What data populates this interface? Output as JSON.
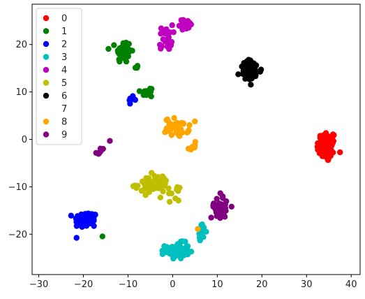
{
  "chart_data": {
    "type": "scatter",
    "title": "",
    "xlabel": "",
    "ylabel": "",
    "xlim": [
      -31.5,
      42
    ],
    "ylim": [
      -28.5,
      28.5
    ],
    "xticks": [
      -30,
      -20,
      -10,
      0,
      10,
      20,
      30,
      40
    ],
    "yticks": [
      -20,
      -10,
      0,
      10,
      20
    ],
    "xtick_labels": [
      "−30",
      "−20",
      "−10",
      "0",
      "10",
      "20",
      "30",
      "40"
    ],
    "ytick_labels": [
      "−20",
      "−10",
      "0",
      "10",
      "20"
    ],
    "grid": false,
    "legend": "upper-left",
    "series": [
      {
        "name": "0",
        "color": "#ff0000",
        "clusters": [
          {
            "cx": 34.5,
            "cy": -1.5,
            "sx": 1.8,
            "sy": 2.8,
            "n": 80
          }
        ]
      },
      {
        "name": "1",
        "color": "#008000",
        "clusters": [
          {
            "cx": -11.0,
            "cy": 18.5,
            "sx": 1.4,
            "sy": 2.0,
            "n": 55
          },
          {
            "cx": -8.0,
            "cy": 15.0,
            "sx": 0.6,
            "sy": 0.8,
            "n": 4
          },
          {
            "cx": -5.5,
            "cy": 10.0,
            "sx": 1.5,
            "sy": 0.9,
            "n": 10
          },
          {
            "cx": -15.8,
            "cy": -20.3,
            "sx": 0.2,
            "sy": 0.2,
            "n": 1
          }
        ]
      },
      {
        "name": "2",
        "color": "#0000ff",
        "clusters": [
          {
            "cx": -19.5,
            "cy": -17.0,
            "sx": 2.2,
            "sy": 1.5,
            "n": 60
          },
          {
            "cx": -9.0,
            "cy": 8.5,
            "sx": 0.6,
            "sy": 0.7,
            "n": 8
          }
        ]
      },
      {
        "name": "3",
        "color": "#00bfbf",
        "clusters": [
          {
            "cx": 1.0,
            "cy": -23.5,
            "sx": 2.2,
            "sy": 1.4,
            "n": 75
          },
          {
            "cx": 6.5,
            "cy": -19.5,
            "sx": 0.8,
            "sy": 1.3,
            "n": 14
          }
        ]
      },
      {
        "name": "4",
        "color": "#bf00bf",
        "clusters": [
          {
            "cx": 3.0,
            "cy": 24.2,
            "sx": 1.2,
            "sy": 0.9,
            "n": 30
          },
          {
            "cx": -1.5,
            "cy": 21.5,
            "sx": 1.2,
            "sy": 2.2,
            "n": 30
          }
        ]
      },
      {
        "name": "5",
        "color": "#bfbf00",
        "clusters": [
          {
            "cx": -4.5,
            "cy": -9.5,
            "sx": 3.2,
            "sy": 1.6,
            "n": 70
          },
          {
            "cx": 0.0,
            "cy": -11.5,
            "sx": 1.2,
            "sy": 1.1,
            "n": 10
          }
        ]
      },
      {
        "name": "6",
        "color": "#000000",
        "clusters": [
          {
            "cx": 17.5,
            "cy": 14.5,
            "sx": 2.0,
            "sy": 1.8,
            "n": 70
          }
        ]
      },
      {
        "name": "7",
        "color": "#ffffff",
        "clusters": []
      },
      {
        "name": "8",
        "color": "#ffa500",
        "clusters": [
          {
            "cx": 1.0,
            "cy": 2.5,
            "sx": 2.2,
            "sy": 1.6,
            "n": 40
          },
          {
            "cx": 4.5,
            "cy": -1.5,
            "sx": 1.3,
            "sy": 0.8,
            "n": 8
          },
          {
            "cx": 5.5,
            "cy": -19.0,
            "sx": 0.2,
            "sy": 0.2,
            "n": 1
          }
        ]
      },
      {
        "name": "9",
        "color": "#800080",
        "clusters": [
          {
            "cx": 10.5,
            "cy": -14.0,
            "sx": 1.5,
            "sy": 2.2,
            "n": 35
          },
          {
            "cx": -16.2,
            "cy": -2.5,
            "sx": 0.7,
            "sy": 0.6,
            "n": 6
          },
          {
            "cx": -14.0,
            "cy": -0.2,
            "sx": 0.2,
            "sy": 0.2,
            "n": 1
          }
        ]
      }
    ]
  }
}
